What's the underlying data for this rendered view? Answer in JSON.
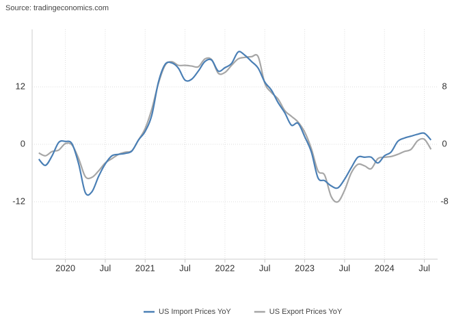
{
  "chart_data": {
    "type": "line",
    "source": "Source: tradingeconomics.com",
    "x": [
      "2019-09",
      "2019-10",
      "2019-11",
      "2019-12",
      "2020-01",
      "2020-02",
      "2020-03",
      "2020-04",
      "2020-05",
      "2020-06",
      "2020-07",
      "2020-08",
      "2020-09",
      "2020-10",
      "2020-11",
      "2020-12",
      "2021-01",
      "2021-02",
      "2021-03",
      "2021-04",
      "2021-05",
      "2021-06",
      "2021-07",
      "2021-08",
      "2021-09",
      "2021-10",
      "2021-11",
      "2021-12",
      "2022-01",
      "2022-02",
      "2022-03",
      "2022-04",
      "2022-05",
      "2022-06",
      "2022-07",
      "2022-08",
      "2022-09",
      "2022-10",
      "2022-11",
      "2022-12",
      "2023-01",
      "2023-02",
      "2023-03",
      "2023-04",
      "2023-05",
      "2023-06",
      "2023-07",
      "2023-08",
      "2023-09",
      "2023-10",
      "2023-11",
      "2023-12",
      "2024-01",
      "2024-02",
      "2024-03",
      "2024-04",
      "2024-05",
      "2024-06",
      "2024-07",
      "2024-08"
    ],
    "xlim": [
      "2019-08",
      "2024-09"
    ],
    "xticks": [
      {
        "value": "2020-01",
        "label": "2020"
      },
      {
        "value": "2020-07",
        "label": "Jul"
      },
      {
        "value": "2021-01",
        "label": "2021"
      },
      {
        "value": "2021-07",
        "label": "Jul"
      },
      {
        "value": "2022-01",
        "label": "2022"
      },
      {
        "value": "2022-07",
        "label": "Jul"
      },
      {
        "value": "2023-01",
        "label": "2023"
      },
      {
        "value": "2023-07",
        "label": "Jul"
      },
      {
        "value": "2024-01",
        "label": "2024"
      },
      {
        "value": "2024-07",
        "label": "Jul"
      }
    ],
    "ylim": [
      -24,
      24
    ],
    "yticks": [
      -12,
      0,
      12
    ],
    "y2lim": [
      -16,
      16
    ],
    "y2ticks": [
      -8,
      0,
      8
    ],
    "grid": true,
    "legend": "bottom",
    "series": [
      {
        "name": "US Import Prices YoY",
        "color": "#4a7fb5",
        "values": [
          -3.1,
          -4.4,
          -2.4,
          0.4,
          0.6,
          0.1,
          -4.1,
          -10.1,
          -9.9,
          -6.7,
          -4.1,
          -2.4,
          -2.1,
          -1.9,
          -1.4,
          0.9,
          2.7,
          6.1,
          13.0,
          16.7,
          17.0,
          15.9,
          13.4,
          13.6,
          15.3,
          17.3,
          17.6,
          15.3,
          16.0,
          16.9,
          19.3,
          18.6,
          17.3,
          15.9,
          13.0,
          11.3,
          8.7,
          6.6,
          4.0,
          4.4,
          1.6,
          -1.6,
          -7.0,
          -7.6,
          -8.7,
          -9.1,
          -7.3,
          -4.9,
          -2.7,
          -2.7,
          -2.7,
          -3.9,
          -2.4,
          -1.6,
          0.6,
          1.3,
          1.7,
          2.1,
          2.3,
          0.9
        ]
      },
      {
        "name": "US Export Prices YoY",
        "color": "#a6a6a6",
        "axis": "y2",
        "values": [
          -1.2,
          -1.6,
          -1.0,
          -0.8,
          0.1,
          -0.1,
          -2.0,
          -4.5,
          -4.6,
          -3.7,
          -2.6,
          -2.0,
          -1.4,
          -1.1,
          -0.9,
          0.6,
          2.2,
          4.9,
          8.5,
          11.0,
          11.5,
          11.0,
          11.0,
          10.9,
          10.8,
          11.9,
          11.8,
          9.9,
          10.0,
          11.0,
          11.9,
          12.1,
          12.2,
          12.2,
          8.5,
          7.2,
          6.3,
          4.7,
          3.9,
          3.1,
          1.7,
          -0.6,
          -3.7,
          -4.3,
          -7.3,
          -8.0,
          -6.4,
          -4.0,
          -2.8,
          -3.0,
          -3.4,
          -2.0,
          -1.8,
          -1.7,
          -1.4,
          -1.0,
          -0.7,
          0.5,
          0.7,
          -0.7
        ]
      }
    ]
  }
}
